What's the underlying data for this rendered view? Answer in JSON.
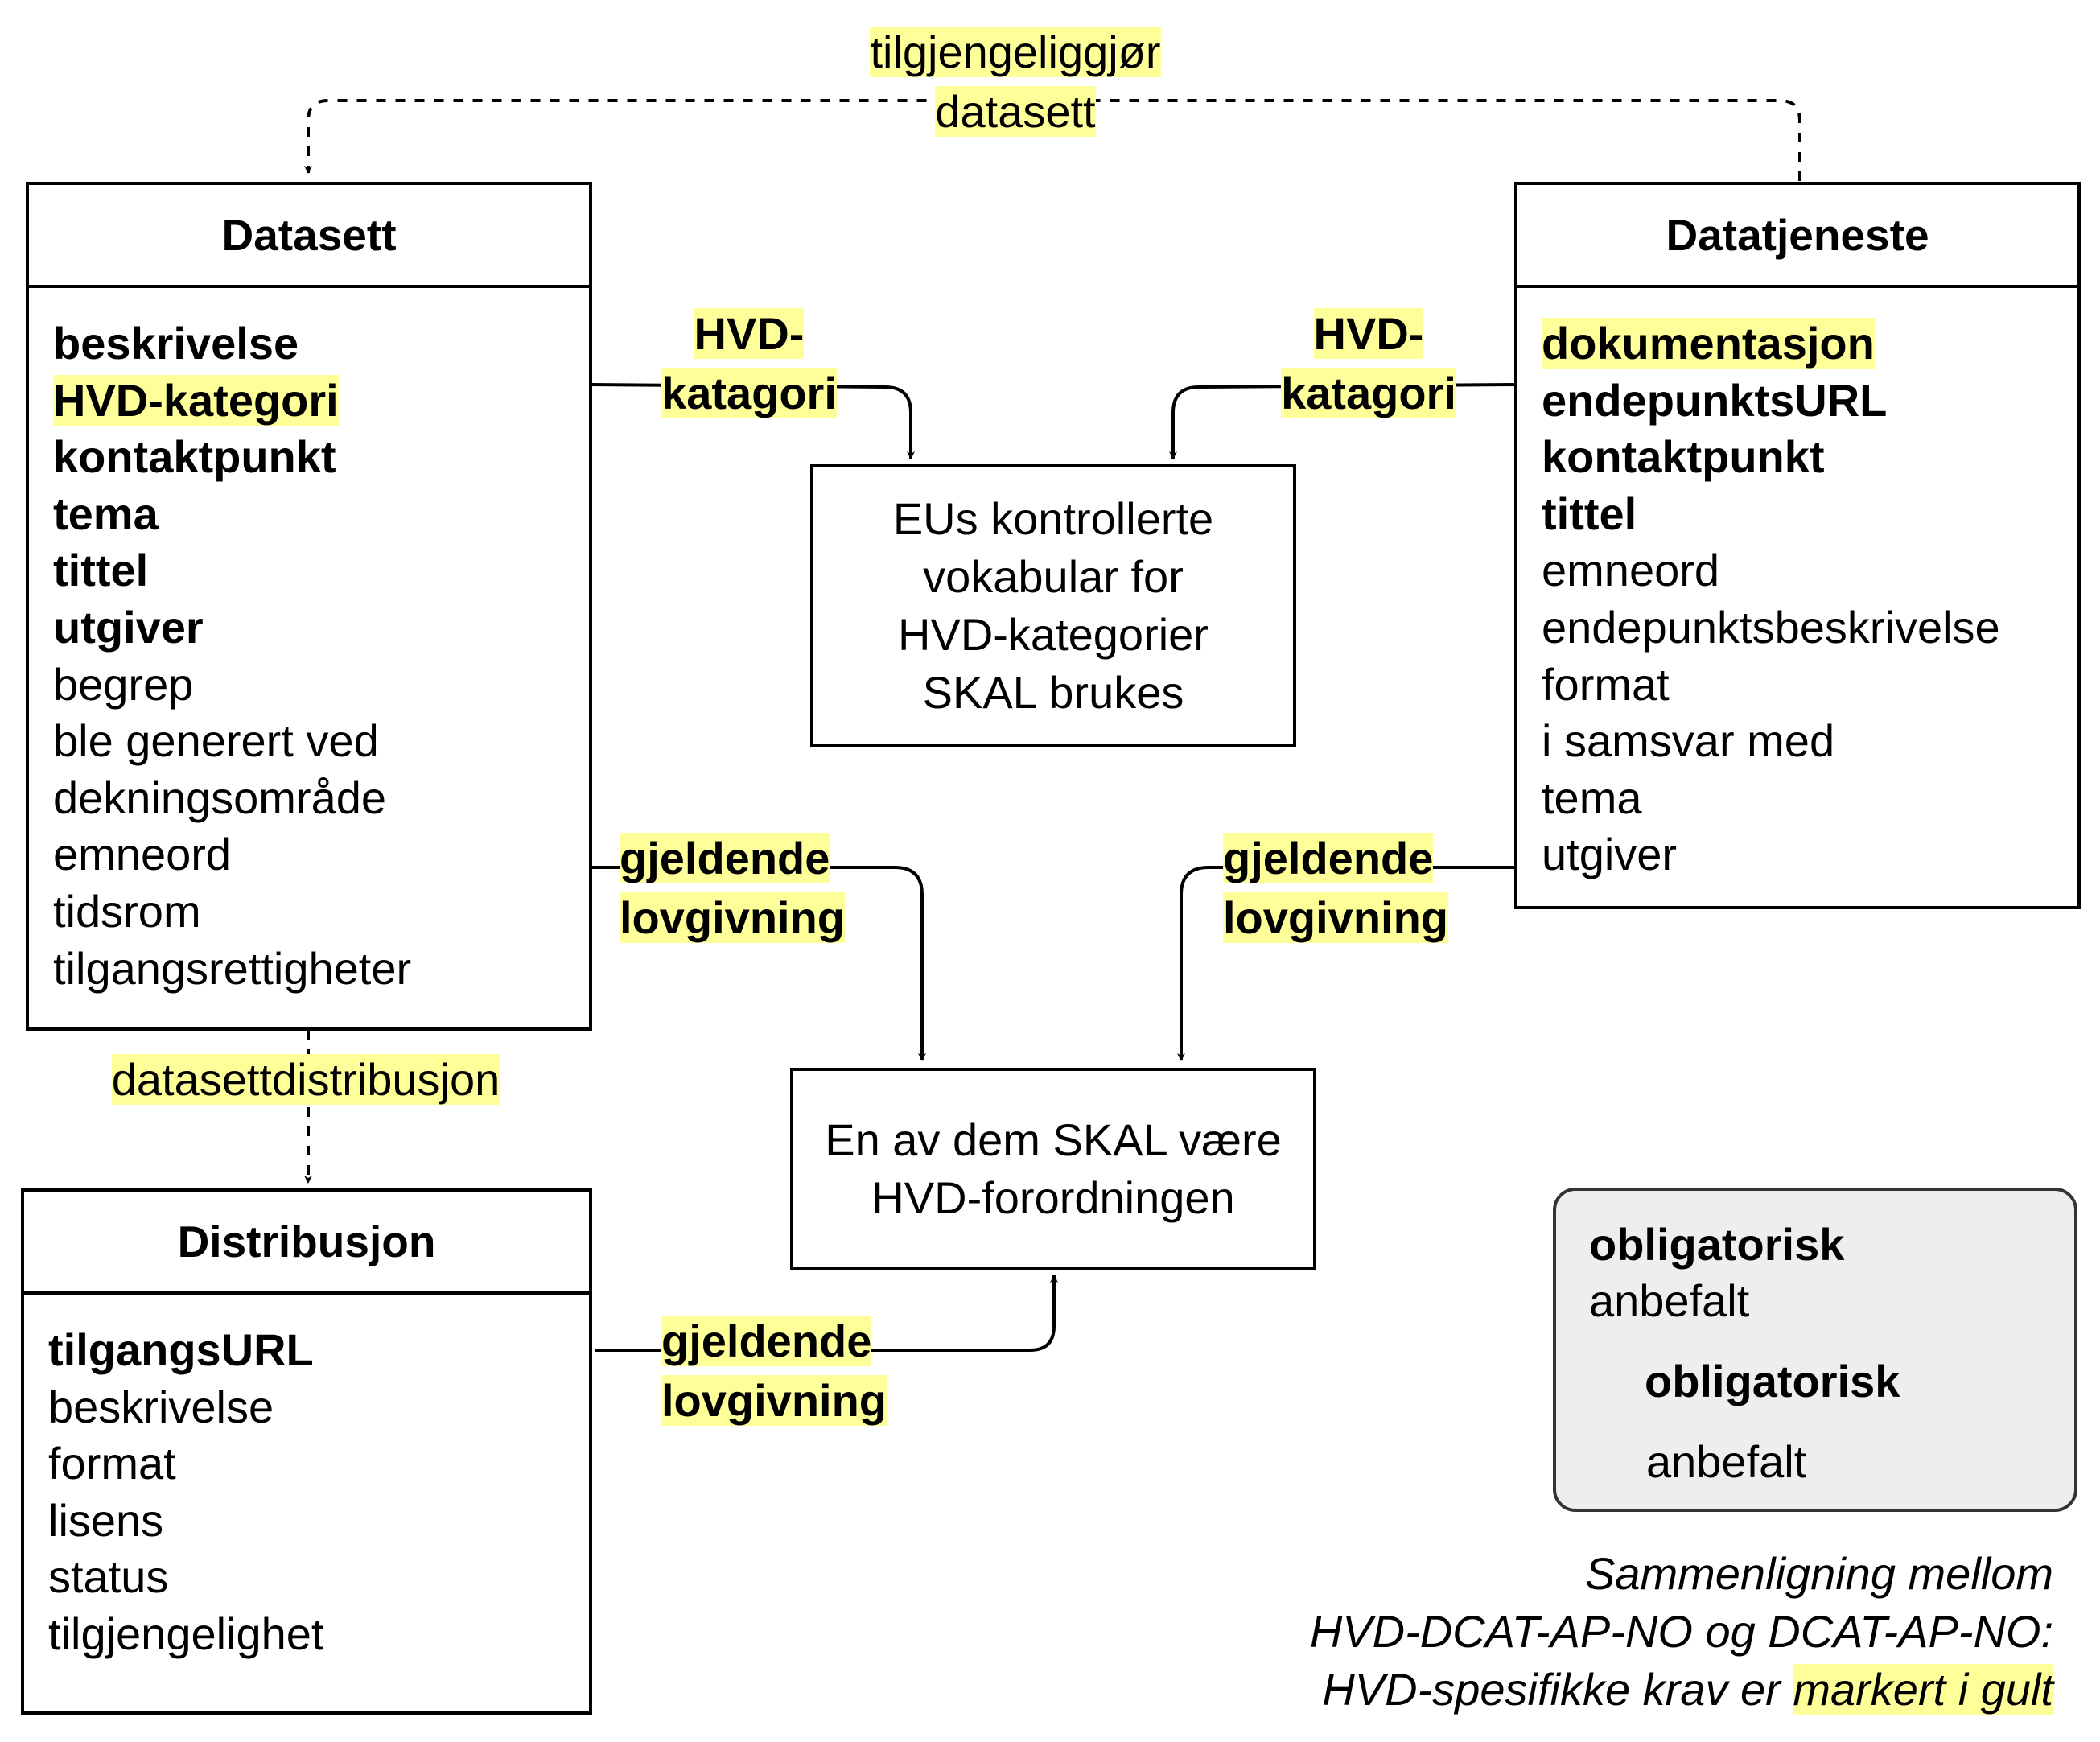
{
  "boxes": {
    "datasett": {
      "title": "Datasett",
      "attributes": [
        {
          "text": "beskrivelse",
          "required": true,
          "hvd": false
        },
        {
          "text": "HVD-kategori",
          "required": true,
          "hvd": true
        },
        {
          "text": "kontaktpunkt",
          "required": true,
          "hvd": false
        },
        {
          "text": "tema",
          "required": true,
          "hvd": false
        },
        {
          "text": "tittel",
          "required": true,
          "hvd": false
        },
        {
          "text": "utgiver",
          "required": true,
          "hvd": false
        },
        {
          "text": "begrep",
          "required": false,
          "hvd": false
        },
        {
          "text": "ble generert ved",
          "required": false,
          "hvd": false
        },
        {
          "text": "dekningsområde",
          "required": false,
          "hvd": false
        },
        {
          "text": "emneord",
          "required": false,
          "hvd": false
        },
        {
          "text": "tidsrom",
          "required": false,
          "hvd": false
        },
        {
          "text": "tilgangsrettigheter",
          "required": false,
          "hvd": false
        }
      ]
    },
    "datatjeneste": {
      "title": "Datatjeneste",
      "attributes": [
        {
          "text": "dokumentasjon",
          "required": true,
          "hvd": true
        },
        {
          "text": "endepunktsURL",
          "required": true,
          "hvd": false
        },
        {
          "text": "kontaktpunkt",
          "required": true,
          "hvd": false
        },
        {
          "text": "tittel",
          "required": true,
          "hvd": false
        },
        {
          "text": "emneord",
          "required": false,
          "hvd": false
        },
        {
          "text": "endepunktsbeskrivelse",
          "required": false,
          "hvd": false
        },
        {
          "text": "format",
          "required": false,
          "hvd": false
        },
        {
          "text": "i samsvar med",
          "required": false,
          "hvd": false
        },
        {
          "text": "tema",
          "required": false,
          "hvd": false
        },
        {
          "text": "utgiver",
          "required": false,
          "hvd": false
        }
      ]
    },
    "distribusjon": {
      "title": "Distribusjon",
      "attributes": [
        {
          "text": "tilgangsURL",
          "required": true,
          "hvd": false
        },
        {
          "text": "beskrivelse",
          "required": false,
          "hvd": false
        },
        {
          "text": "format",
          "required": false,
          "hvd": false
        },
        {
          "text": "lisens",
          "required": false,
          "hvd": false
        },
        {
          "text": "status",
          "required": false,
          "hvd": false
        },
        {
          "text": "tilgjengelighet",
          "required": false,
          "hvd": false
        }
      ]
    }
  },
  "center_boxes": {
    "vocab": {
      "lines": [
        "EUs kontrollerte",
        "vokabular for",
        "HVD-kategorier",
        "SKAL brukes"
      ]
    },
    "legislation": {
      "lines": [
        "En av dem SKAL være",
        "HVD-forordningen"
      ]
    }
  },
  "edge_labels": {
    "top": {
      "lines": [
        "tilgjengeliggjør",
        "datasett"
      ]
    },
    "hvd_left": {
      "lines": [
        "HVD-",
        "katagori"
      ]
    },
    "hvd_right": {
      "lines": [
        "HVD-",
        "katagori"
      ]
    },
    "law_left": {
      "lines": [
        "gjeldende",
        "lovgivning"
      ]
    },
    "law_right": {
      "lines": [
        "gjeldende",
        "lovgivning"
      ]
    },
    "distribution": {
      "lines": [
        "datasettdistribusjon"
      ]
    },
    "law_dist": {
      "lines": [
        "gjeldende",
        "lovgivning"
      ]
    }
  },
  "legend": {
    "required_label": "obligatorisk",
    "recommended_label": "anbefalt",
    "required_arrow_label": "obligatorisk",
    "recommended_arrow_label": "anbefalt"
  },
  "caption": {
    "line1": "Sammenligning mellom",
    "line2": "HVD-DCAT-AP-NO og DCAT-AP-NO:",
    "line3_prefix": "HVD-spesifikke krav er ",
    "line3_highlight": "markert i gult"
  },
  "colors": {
    "highlight": "#ffff99",
    "legend_fill": "#eeeeee",
    "stroke": "#000000"
  }
}
